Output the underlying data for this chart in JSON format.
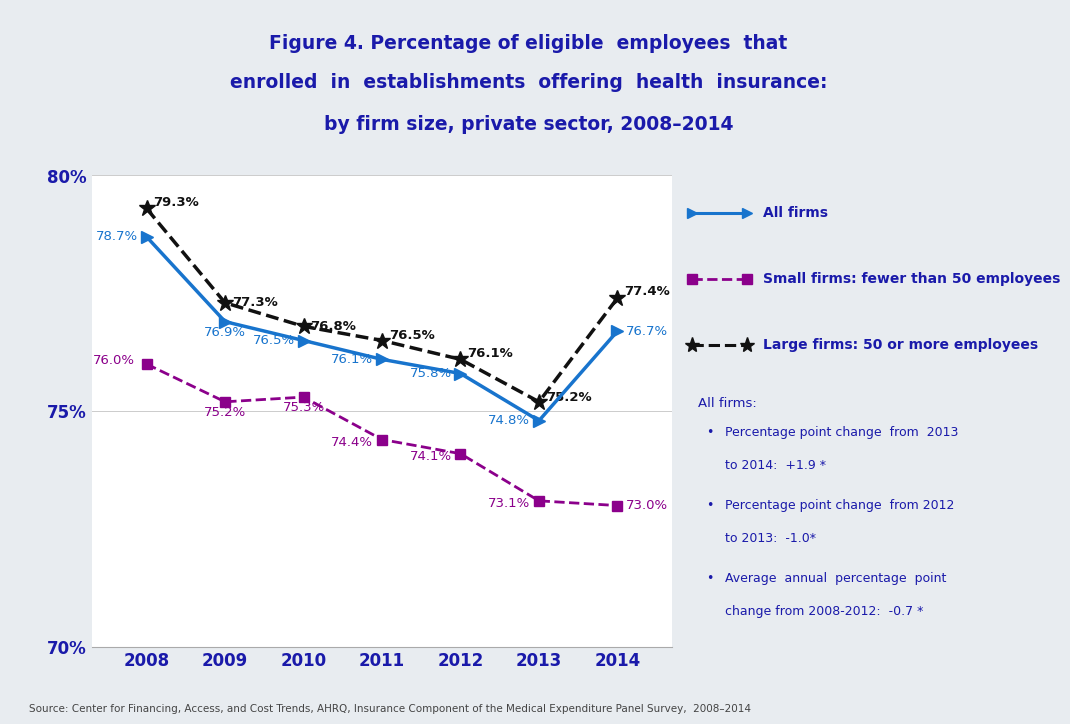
{
  "years": [
    2008,
    2009,
    2010,
    2011,
    2012,
    2013,
    2014
  ],
  "all_firms": [
    78.7,
    76.9,
    76.5,
    76.1,
    75.8,
    74.8,
    76.7
  ],
  "small_firms": [
    76.0,
    75.2,
    75.3,
    74.4,
    74.1,
    73.1,
    73.0
  ],
  "large_firms": [
    79.3,
    77.3,
    76.8,
    76.5,
    76.1,
    75.2,
    77.4
  ],
  "all_firms_color": "#1874CD",
  "small_firms_color": "#8B008B",
  "large_firms_color": "#111111",
  "title_line1": "Figure 4. Percentage of eligible  employees  that",
  "title_line2": "enrolled  in  establishments  offering  health  insurance:",
  "title_line3": "by firm size, private sector, 2008–2014",
  "title_color": "#1a1aaa",
  "legend_all_firms": "All firms",
  "legend_small_firms": "Small firms: fewer than 50 employees",
  "legend_large_firms": "Large firms: 50 or more employees",
  "annotation_header": "All firms:",
  "annotation_line1": "Percentage point change  from  2013",
  "annotation_line2": "to 2014:  +1.9 *",
  "annotation_line3": "Percentage point change  from 2012",
  "annotation_line4": "to 2013:  -1.0*",
  "annotation_line5": "Average  annual  percentage  point",
  "annotation_line6": "change from 2008-2012:  -0.7 *",
  "source_text": "Source: Center for Financing, Access, and Cost Trends, AHRQ, Insurance Component of the Medical Expenditure Panel Survey,  2008–2014",
  "ylim": [
    70,
    80
  ],
  "yticks": [
    70,
    75,
    80
  ],
  "header_bg": "#d8dde3",
  "plot_bg": "#ffffff",
  "annotation_color": "#1a1aaa",
  "label_fontsize": 9.5,
  "axis_label_color": "#1a1aaa",
  "sep_color": "#b09090"
}
